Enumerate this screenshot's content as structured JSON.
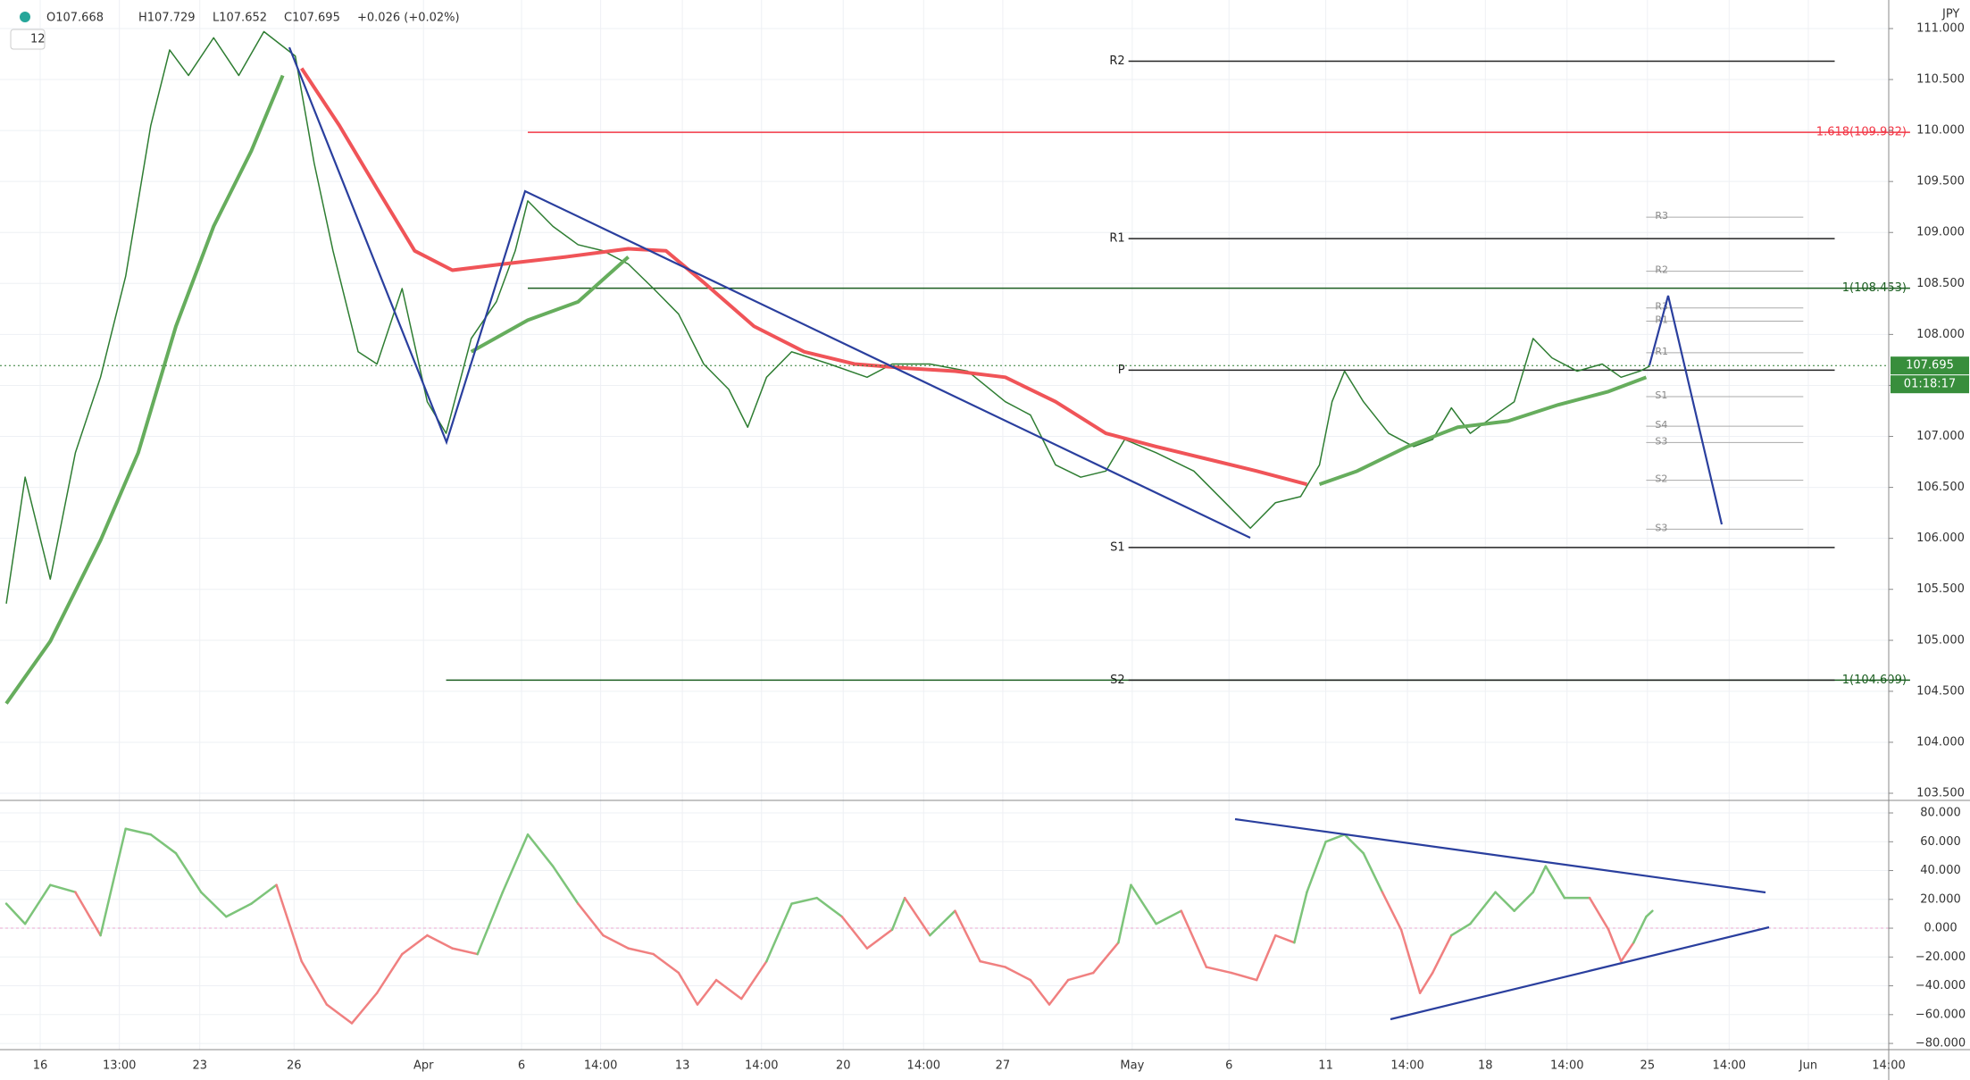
{
  "header": {
    "open": "O107.668",
    "high": "H107.729",
    "low": "L107.652",
    "close": "C107.695",
    "change": "+0.026 (+0.02%)",
    "interval": "12",
    "currency": "JPY"
  },
  "chart_data": [
    {
      "type": "line",
      "xlim": [
        0,
        1503
      ],
      "ylim": [
        103.43,
        111.28
      ],
      "yticks": [
        {
          "value": 103.5,
          "label": "103.500"
        },
        {
          "value": 104,
          "label": "104.000"
        },
        {
          "value": 104.5,
          "label": "104.500"
        },
        {
          "value": 105,
          "label": "105.000"
        },
        {
          "value": 105.5,
          "label": "105.500"
        },
        {
          "value": 106,
          "label": "106.000"
        },
        {
          "value": 106.5,
          "label": "106.500"
        },
        {
          "value": 107,
          "label": "107.000"
        },
        {
          "value": 107.5,
          "label": "107.500"
        },
        {
          "value": 108,
          "label": "108.000"
        },
        {
          "value": 108.5,
          "label": "108.500"
        },
        {
          "value": 109,
          "label": "109.000"
        },
        {
          "value": 109.5,
          "label": "109.500"
        },
        {
          "value": 110,
          "label": "110.000"
        },
        {
          "value": 110.5,
          "label": "110.500"
        },
        {
          "value": 111,
          "label": "111.000"
        }
      ],
      "grid": true,
      "series": [
        {
          "color": "#2e7d32",
          "width": 1.5,
          "x": [
            5,
            20,
            40,
            60,
            80,
            100,
            120,
            135,
            150,
            170,
            190,
            210,
            235,
            250,
            265,
            285,
            300,
            320,
            340,
            355,
            375,
            395,
            410,
            420,
            440,
            460,
            480,
            500,
            520,
            540,
            560,
            580,
            595,
            610,
            630,
            660,
            690,
            710,
            740,
            770,
            800,
            820,
            840,
            860,
            880,
            895,
            920,
            950,
            975,
            995,
            1015,
            1035,
            1050,
            1060,
            1070,
            1085,
            1105,
            1125,
            1140,
            1155,
            1170,
            1190,
            1205,
            1220,
            1235,
            1255,
            1275,
            1290,
            1305,
            1313
          ],
          "values": [
            105.36,
            106.6,
            105.6,
            106.84,
            107.58,
            108.57,
            110.05,
            110.79,
            110.54,
            110.91,
            110.54,
            110.97,
            110.73,
            109.68,
            108.82,
            107.83,
            107.71,
            108.45,
            107.34,
            107.03,
            107.96,
            108.32,
            108.82,
            109.31,
            109.06,
            108.88,
            108.82,
            108.69,
            108.45,
            108.2,
            107.71,
            107.46,
            107.09,
            107.58,
            107.83,
            107.71,
            107.58,
            107.71,
            107.71,
            107.64,
            107.34,
            107.21,
            106.72,
            106.6,
            106.66,
            106.97,
            106.84,
            106.66,
            106.35,
            106.1,
            106.35,
            106.41,
            106.72,
            107.34,
            107.64,
            107.34,
            107.03,
            106.9,
            106.97,
            107.28,
            107.03,
            107.21,
            107.34,
            107.96,
            107.77,
            107.64,
            107.71,
            107.58,
            107.64,
            107.69
          ]
        },
        {
          "color": "#f05458",
          "width": 4,
          "x": [
            240,
            270,
            300,
            330,
            360,
            400,
            450,
            500,
            530,
            560,
            600,
            640,
            680,
            720,
            760,
            800,
            840,
            880,
            920,
            960,
            1000,
            1040
          ],
          "values": [
            110.61,
            110.05,
            109.43,
            108.82,
            108.63,
            108.69,
            108.76,
            108.84,
            108.82,
            108.51,
            108.08,
            107.83,
            107.71,
            107.67,
            107.64,
            107.58,
            107.34,
            107.03,
            106.9,
            106.78,
            106.66,
            106.53
          ]
        },
        {
          "color": "#66ad5d",
          "width": 4,
          "x": [
            5,
            40,
            80,
            110,
            140,
            170,
            200,
            225,
            300,
            375,
            420,
            460,
            500,
            775,
            1050,
            1080,
            1120,
            1160,
            1200,
            1240,
            1280,
            1310
          ],
          "values": [
            104.38,
            104.99,
            105.98,
            106.84,
            108.08,
            109.06,
            109.8,
            110.54,
            null,
            107.83,
            108.14,
            108.32,
            108.76,
            null,
            106.53,
            106.66,
            106.9,
            107.09,
            107.15,
            107.31,
            107.44,
            107.58
          ]
        }
      ],
      "levels": [
        {
          "label": "R2",
          "value": 110.68,
          "x": [
            898,
            1460
          ],
          "color": "#222"
        },
        {
          "label": "1.618(109.982)",
          "value": 109.982,
          "x": [
            420,
            1520
          ],
          "color": "#f23645"
        },
        {
          "label": "R1",
          "value": 108.94,
          "x": [
            898,
            1460
          ],
          "color": "#222"
        },
        {
          "label": "1(108.453)",
          "value": 108.453,
          "x": [
            420,
            1520
          ],
          "color": "#1b5e20"
        },
        {
          "label": "P",
          "value": 107.65,
          "x": [
            898,
            1460
          ],
          "color": "#222"
        },
        {
          "label": "S1",
          "value": 105.91,
          "x": [
            898,
            1460
          ],
          "color": "#222"
        },
        {
          "label": "1(104.609)",
          "value": 104.609,
          "x": [
            355,
            1520
          ],
          "color": "#1b5e20"
        },
        {
          "label": "S2",
          "value": 104.61,
          "x": [
            898,
            1460
          ],
          "color": "#222"
        }
      ],
      "minor_levels": [
        {
          "label": "R3",
          "value": 109.15,
          "x": [
            1310,
            1435
          ]
        },
        {
          "label": "R2",
          "value": 108.62,
          "x": [
            1310,
            1435
          ]
        },
        {
          "label": "R3",
          "value": 108.26,
          "x": [
            1310,
            1435
          ]
        },
        {
          "label": "R1",
          "value": 108.13,
          "x": [
            1310,
            1435
          ]
        },
        {
          "label": "R1",
          "value": 107.82,
          "x": [
            1310,
            1435
          ]
        },
        {
          "label": "S1",
          "value": 107.39,
          "x": [
            1310,
            1435
          ]
        },
        {
          "label": "S4",
          "value": 107.1,
          "x": [
            1310,
            1435
          ]
        },
        {
          "label": "S3",
          "value": 106.94,
          "x": [
            1310,
            1435
          ]
        },
        {
          "label": "S2",
          "value": 106.57,
          "x": [
            1310,
            1435
          ]
        },
        {
          "label": "S3",
          "value": 106.09,
          "x": [
            1310,
            1435
          ]
        }
      ],
      "last_price": {
        "value": 107.695,
        "label": "107.695"
      },
      "countdown": "01:18:17"
    },
    {
      "type": "line",
      "xlim": [
        0,
        1503
      ],
      "ylim": [
        -84.3,
        88.7
      ],
      "yticks": [
        {
          "value": -80,
          "label": "−80.000"
        },
        {
          "value": -60,
          "label": "−60.000"
        },
        {
          "value": -40,
          "label": "−40.000"
        },
        {
          "value": -20,
          "label": "−20.000"
        },
        {
          "value": 0,
          "label": "0.000"
        },
        {
          "value": 20,
          "label": "20.000"
        },
        {
          "value": 40,
          "label": "40.000"
        },
        {
          "value": 60,
          "label": "60.000"
        },
        {
          "value": 80,
          "label": "80.000"
        }
      ],
      "xticks": [
        {
          "value": 32,
          "label": "16"
        },
        {
          "value": 95,
          "label": "13:00"
        },
        {
          "value": 159,
          "label": "23"
        },
        {
          "value": 234,
          "label": "26"
        },
        {
          "value": 337,
          "label": "Apr"
        },
        {
          "value": 415,
          "label": "6"
        },
        {
          "value": 478,
          "label": "14:00"
        },
        {
          "value": 543,
          "label": "13"
        },
        {
          "value": 606,
          "label": "14:00"
        },
        {
          "value": 671,
          "label": "20"
        },
        {
          "value": 735,
          "label": "14:00"
        },
        {
          "value": 798,
          "label": "27"
        },
        {
          "value": 901,
          "label": "May"
        },
        {
          "value": 978,
          "label": "6"
        },
        {
          "value": 1055,
          "label": "11"
        },
        {
          "value": 1120,
          "label": "14:00"
        },
        {
          "value": 1182,
          "label": "18"
        },
        {
          "value": 1247,
          "label": "14:00"
        },
        {
          "value": 1311,
          "label": "25"
        },
        {
          "value": 1376,
          "label": "14:00"
        },
        {
          "value": 1439,
          "label": "Jun"
        },
        {
          "value": 1503,
          "label": "14:00"
        }
      ],
      "grid": true,
      "hline": 0,
      "pos_color": "#7dc47a",
      "neg_color": "#f08080",
      "series": [
        {
          "x": [
            5,
            20,
            40,
            60,
            80,
            100,
            120,
            140,
            160,
            180,
            200,
            220,
            240,
            260,
            280,
            300,
            320,
            340,
            360,
            380,
            400,
            420,
            440,
            460,
            480,
            500,
            520,
            540,
            555,
            570,
            590,
            610,
            630,
            650,
            670,
            690,
            710,
            720,
            740,
            760,
            780,
            800,
            820,
            835,
            850,
            870,
            890,
            900,
            920,
            940,
            960,
            980,
            1000,
            1015,
            1030,
            1040,
            1055,
            1070,
            1085,
            1100,
            1115,
            1130,
            1140,
            1155,
            1170,
            1190,
            1205,
            1220,
            1230,
            1245,
            1265,
            1280,
            1290,
            1300,
            1310,
            1315
          ],
          "values": [
            17,
            3,
            30,
            25,
            -5,
            69,
            65,
            52,
            25,
            8,
            17,
            30,
            -23,
            -53,
            -66,
            -45,
            -18,
            -5,
            -14,
            -18,
            25,
            65,
            43,
            17,
            -5,
            -14,
            -18,
            -31,
            -53,
            -36,
            -49,
            -23,
            17,
            21,
            8,
            -14,
            -1,
            21,
            -5,
            12,
            -23,
            -27,
            -36,
            -53,
            -36,
            -31,
            -10,
            30,
            3,
            12,
            -27,
            -31,
            -36,
            -5,
            -10,
            25,
            60,
            65,
            52,
            25,
            -1,
            -45,
            -31,
            -5,
            3,
            25,
            12,
            25,
            43,
            21,
            21,
            -1,
            -23,
            -10,
            8,
            12
          ]
        }
      ]
    }
  ]
}
